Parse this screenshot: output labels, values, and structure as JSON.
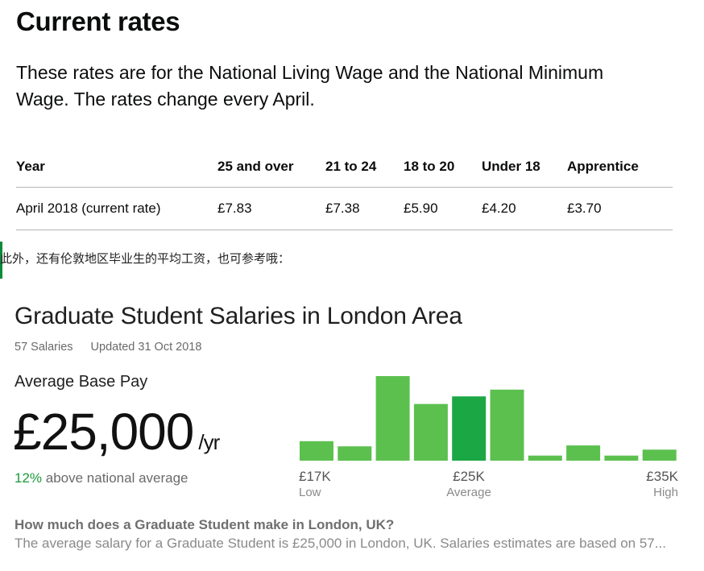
{
  "rates": {
    "title": "Current rates",
    "intro": "These rates are for the National Living Wage and the National Minimum Wage. The rates change every April.",
    "headers": [
      "Year",
      "25 and over",
      "21 to 24",
      "18 to 20",
      "Under 18",
      "Apprentice"
    ],
    "rows": [
      [
        "April 2018 (current rate)",
        "£7.83",
        "£7.38",
        "£5.90",
        "£4.20",
        "£3.70"
      ]
    ]
  },
  "note": "此外，还有伦敦地区毕业生的平均工资，也可参考哦：",
  "salary": {
    "title": "Graduate Student Salaries in London Area",
    "count": "57 Salaries",
    "updated": "Updated 31 Oct 2018",
    "avg_label": "Average Base Pay",
    "avg_value": "£25,000",
    "avg_unit": "/yr",
    "compare_pct": "12%",
    "compare_text": " above national average",
    "faq_question": "How much does a Graduate Student make in London, UK?",
    "faq_answer": "The average salary for a Graduate Student is £25,000 in London, UK. Salaries estimates are based on 57..."
  },
  "chart_data": {
    "type": "bar",
    "values": [
      0.23,
      0.17,
      1.0,
      0.67,
      0.76,
      0.84,
      0.06,
      0.18,
      0.06,
      0.13
    ],
    "highlight_index": 4,
    "colors": {
      "bar": "#5cc04f",
      "highlight": "#1ca745"
    },
    "axis_labels": [
      {
        "value": "£17K",
        "sub": "Low"
      },
      {
        "value": "£25K",
        "sub": "Average"
      },
      {
        "value": "£35K",
        "sub": "High"
      }
    ]
  }
}
